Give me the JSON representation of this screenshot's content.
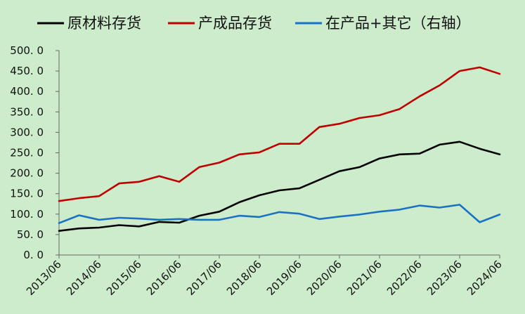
{
  "chart_data": {
    "type": "line",
    "title": "",
    "xlabel": "",
    "ylabel": "",
    "ylim": [
      0,
      500
    ],
    "y_ticks": [
      "0. 0",
      "50. 0",
      "100. 0",
      "150. 0",
      "200. 0",
      "250. 0",
      "300. 0",
      "350. 0",
      "400. 0",
      "450. 0",
      "500. 0"
    ],
    "x_tick_labels": [
      "2013/06",
      "2014/06",
      "2015/06",
      "2016/06",
      "2017/06",
      "2018/06",
      "2019/06",
      "2020/06",
      "2021/06",
      "2022/06",
      "2023/06",
      "2024/06"
    ],
    "x": [
      "2013/06",
      "2013/12",
      "2014/06",
      "2014/12",
      "2015/06",
      "2015/12",
      "2016/06",
      "2016/12",
      "2017/06",
      "2017/12",
      "2018/06",
      "2018/12",
      "2019/06",
      "2019/12",
      "2020/06",
      "2020/12",
      "2021/06",
      "2021/12",
      "2022/06",
      "2022/12",
      "2023/06",
      "2023/12",
      "2024/06"
    ],
    "grid": false,
    "legend_position": "top",
    "series": [
      {
        "name": "原材料存货",
        "color": "#000000",
        "values": [
          59,
          65,
          67,
          73,
          70,
          81,
          79,
          96,
          106,
          129,
          146,
          158,
          163,
          184,
          205,
          215,
          236,
          246,
          248,
          270,
          277,
          260,
          246
        ]
      },
      {
        "name": "产成品存货",
        "color": "#c00000",
        "values": [
          132,
          139,
          144,
          175,
          179,
          193,
          179,
          215,
          226,
          246,
          251,
          272,
          272,
          313,
          321,
          335,
          342,
          357,
          388,
          415,
          450,
          459,
          443
        ]
      },
      {
        "name": "在产品+其它（右轴）",
        "color": "#1a72c4",
        "values": [
          78,
          97,
          86,
          91,
          89,
          86,
          88,
          86,
          86,
          96,
          93,
          105,
          101,
          88,
          94,
          99,
          106,
          111,
          121,
          116,
          123,
          80,
          99
        ]
      }
    ]
  }
}
